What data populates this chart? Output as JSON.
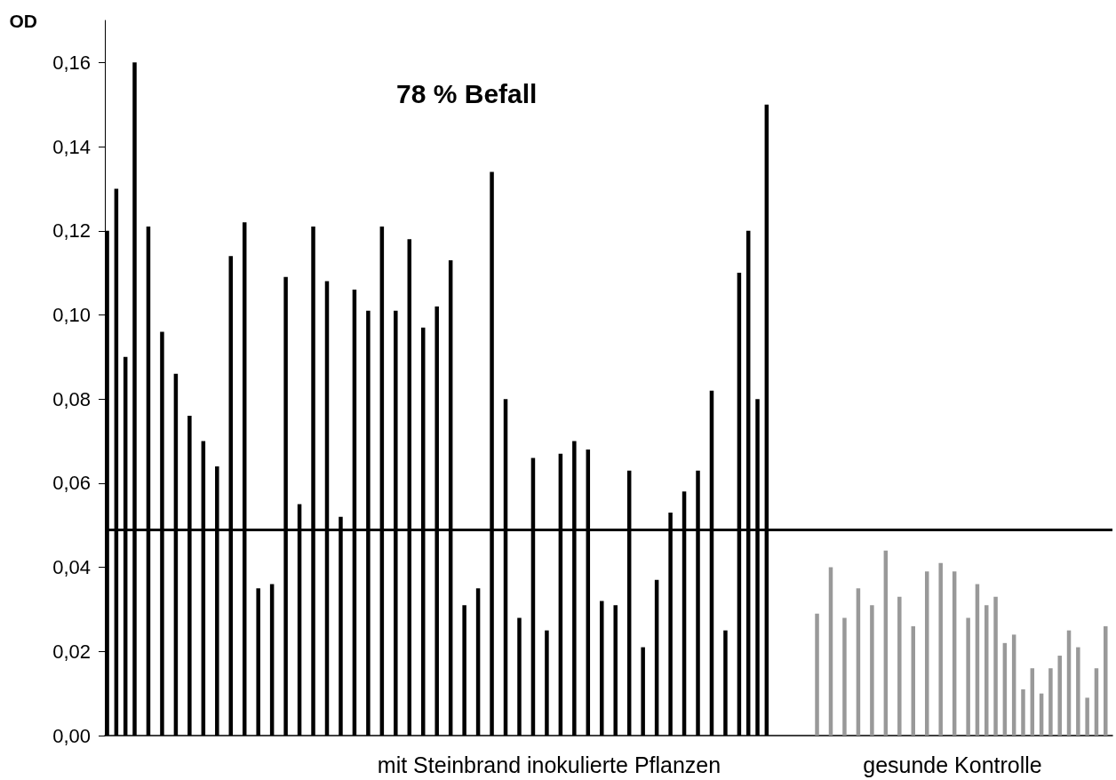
{
  "chart_data": {
    "type": "bar",
    "title": "78 % Befall",
    "ylabel": "OD",
    "categories": [
      null,
      null,
      null,
      null,
      null,
      null,
      null,
      null,
      null,
      null,
      null,
      null,
      null,
      null,
      null,
      null,
      null,
      null,
      null,
      null,
      null,
      null,
      null,
      null,
      null,
      null,
      null,
      null,
      null,
      null,
      null,
      null,
      null,
      null,
      null,
      null,
      null,
      null,
      null,
      null,
      null,
      null,
      null,
      null,
      null,
      null,
      null,
      null,
      null,
      null,
      null,
      null,
      null,
      null,
      null,
      null,
      null,
      null,
      null,
      null,
      null,
      null,
      null,
      null,
      null,
      null,
      null,
      null,
      null,
      null,
      null,
      null,
      null,
      null,
      null,
      null,
      null,
      null,
      null,
      null,
      null,
      null,
      null,
      null,
      null,
      null,
      null,
      null,
      null,
      null,
      null,
      null,
      null,
      null,
      null,
      null,
      null,
      null,
      null,
      null,
      null,
      null,
      null,
      null,
      null,
      null,
      null,
      null,
      null,
      null,
      null,
      null,
      null,
      null,
      null,
      null,
      null,
      null,
      null,
      null,
      null,
      null,
      null,
      null,
      null,
      null,
      null,
      null,
      null,
      null,
      null,
      null,
      null,
      null,
      null,
      null,
      null,
      null,
      null,
      null,
      null,
      null,
      null,
      null,
      null,
      null,
      null,
      null,
      null,
      null,
      null,
      null,
      null,
      null,
      null,
      null,
      null,
      null,
      null,
      null,
      null,
      null,
      null,
      null,
      null,
      null,
      null,
      null,
      null,
      null,
      null,
      null,
      null,
      null,
      null,
      null,
      null,
      null,
      null,
      null,
      null,
      null,
      null,
      null,
      null,
      null,
      null,
      null,
      null,
      null,
      null,
      null,
      null,
      null,
      null,
      null,
      null,
      null,
      null,
      null,
      null,
      null,
      null,
      null,
      null,
      null,
      null,
      null,
      null,
      null,
      null,
      null,
      null,
      null,
      null,
      null,
      null,
      null,
      null,
      null
    ],
    "series": [
      {
        "name": "mit Steinbrand inokulierte Pflanzen",
        "color": "#000000",
        "values": [
          0.12,
          null,
          0.13,
          null,
          0.09,
          null,
          0.16,
          null,
          null,
          0.121,
          null,
          null,
          0.096,
          null,
          null,
          0.086,
          null,
          null,
          0.076,
          null,
          null,
          0.07,
          null,
          null,
          0.064,
          null,
          null,
          0.114,
          null,
          null,
          0.122,
          null,
          null,
          0.035,
          null,
          null,
          0.036,
          null,
          null,
          0.109,
          null,
          null,
          0.055,
          null,
          null,
          0.121,
          null,
          null,
          0.108,
          null,
          null,
          0.052,
          null,
          null,
          0.106,
          null,
          null,
          0.101,
          null,
          null,
          0.121,
          null,
          null,
          0.101,
          null,
          null,
          0.118,
          null,
          null,
          0.097,
          null,
          null,
          0.102,
          null,
          null,
          0.113,
          null,
          null,
          0.031,
          null,
          null,
          0.035,
          null,
          null,
          0.134,
          null,
          null,
          0.08,
          null,
          null,
          0.028,
          null,
          null,
          0.066,
          null,
          null,
          0.025,
          null,
          null,
          0.067,
          null,
          null,
          0.07,
          null,
          null,
          0.068,
          null,
          null,
          0.032,
          null,
          null,
          0.031,
          null,
          null,
          0.063,
          null,
          null,
          0.021,
          null,
          null,
          0.037,
          null,
          null,
          0.053,
          null,
          null,
          0.058,
          null,
          null,
          0.063,
          null,
          null,
          0.082,
          null,
          null,
          0.025,
          null,
          null,
          0.11,
          null,
          0.12,
          null,
          0.08,
          null,
          0.15,
          null,
          null,
          null,
          null,
          null,
          null,
          null,
          null,
          null,
          null,
          null,
          null,
          null,
          null,
          null,
          null,
          null,
          null,
          null,
          null,
          null,
          null,
          null,
          null,
          null,
          null,
          null,
          null,
          null,
          null,
          null,
          null,
          null,
          null,
          null,
          null,
          null,
          null,
          null,
          null,
          null,
          null,
          null,
          null,
          null,
          null,
          null,
          null,
          null,
          null,
          null,
          null,
          null,
          null,
          null,
          null,
          null,
          null,
          null,
          null,
          null,
          null,
          null,
          null,
          null,
          null,
          null,
          null,
          null,
          null,
          null,
          null,
          null,
          null,
          null
        ]
      },
      {
        "name": "gesunde Kontrolle",
        "color": "#999999",
        "values": [
          null,
          null,
          null,
          null,
          null,
          null,
          null,
          null,
          null,
          null,
          null,
          null,
          null,
          null,
          null,
          null,
          null,
          null,
          null,
          null,
          null,
          null,
          null,
          null,
          null,
          null,
          null,
          null,
          null,
          null,
          null,
          null,
          null,
          null,
          null,
          null,
          null,
          null,
          null,
          null,
          null,
          null,
          null,
          null,
          null,
          null,
          null,
          null,
          null,
          null,
          null,
          null,
          null,
          null,
          null,
          null,
          null,
          null,
          null,
          null,
          null,
          null,
          null,
          null,
          null,
          null,
          null,
          null,
          null,
          null,
          null,
          null,
          null,
          null,
          null,
          null,
          null,
          null,
          null,
          null,
          null,
          null,
          null,
          null,
          null,
          null,
          null,
          null,
          null,
          null,
          null,
          null,
          null,
          null,
          null,
          null,
          null,
          null,
          null,
          null,
          null,
          null,
          null,
          null,
          null,
          null,
          null,
          null,
          null,
          null,
          null,
          null,
          null,
          null,
          null,
          null,
          null,
          null,
          null,
          null,
          null,
          null,
          null,
          null,
          null,
          null,
          null,
          null,
          null,
          null,
          null,
          null,
          null,
          null,
          null,
          null,
          null,
          null,
          null,
          null,
          null,
          null,
          null,
          null,
          null,
          null,
          null,
          null,
          null,
          null,
          null,
          null,
          null,
          null,
          null,
          0.029,
          null,
          null,
          0.04,
          null,
          null,
          0.028,
          null,
          null,
          0.035,
          null,
          null,
          0.031,
          null,
          null,
          0.044,
          null,
          null,
          0.033,
          null,
          null,
          0.026,
          null,
          null,
          0.039,
          null,
          null,
          0.041,
          null,
          null,
          0.039,
          null,
          null,
          0.028,
          null,
          0.036,
          null,
          0.031,
          null,
          0.033,
          null,
          0.022,
          null,
          0.024,
          null,
          0.011,
          null,
          0.016,
          null,
          0.01,
          null,
          0.016,
          null,
          0.019,
          null,
          0.025,
          null,
          0.021,
          null,
          0.009,
          null,
          0.016,
          null,
          0.026,
          null
        ]
      }
    ],
    "ylim": [
      0,
      0.17
    ],
    "yticks": [
      {
        "value": 0,
        "label": "0,00"
      },
      {
        "value": 0.02,
        "label": "0,02"
      },
      {
        "value": 0.04,
        "label": "0,04"
      },
      {
        "value": 0.06,
        "label": "0,06"
      },
      {
        "value": 0.08,
        "label": "0,08"
      },
      {
        "value": 0.1,
        "label": "0,10"
      },
      {
        "value": 0.12,
        "label": "0,12"
      },
      {
        "value": 0.14,
        "label": "0,14"
      },
      {
        "value": 0.16,
        "label": "0,16"
      }
    ],
    "ref_lines": [
      {
        "axis": "y",
        "value": 0.049,
        "color": "#000000"
      }
    ],
    "grid": false,
    "legend": false
  }
}
